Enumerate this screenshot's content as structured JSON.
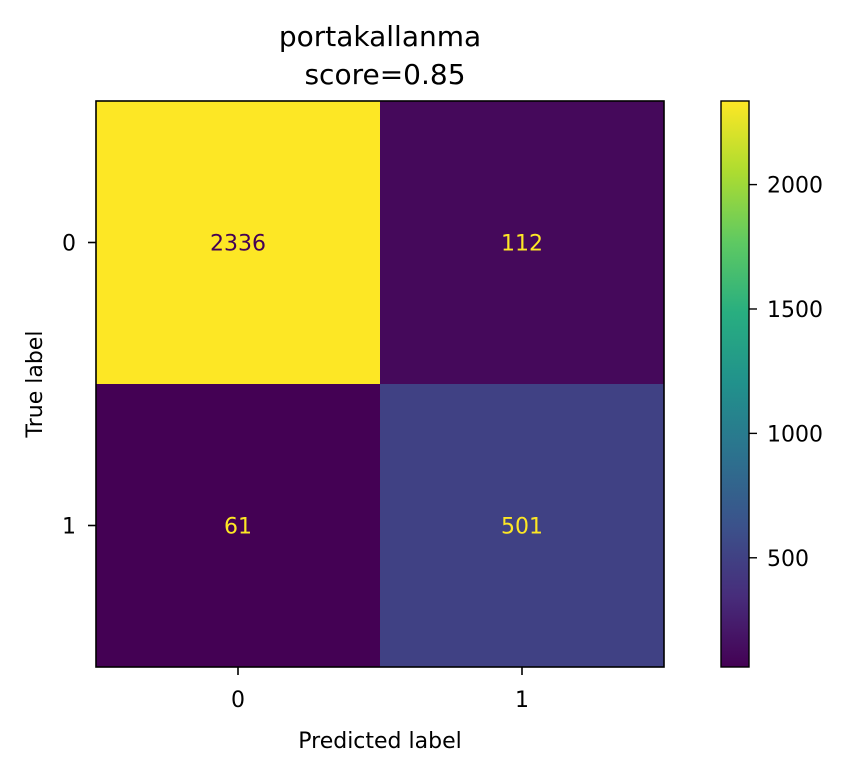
{
  "chart_data": {
    "type": "heatmap",
    "title_line1": "portakallanma",
    "title_line2": "score=0.85",
    "xlabel": "Predicted label",
    "ylabel": "True label",
    "x_categories": [
      "0",
      "1"
    ],
    "y_categories": [
      "0",
      "1"
    ],
    "matrix": [
      [
        2336,
        112
      ],
      [
        61,
        501
      ]
    ],
    "colormap": "viridis",
    "colorbar": {
      "range": [
        61,
        2336
      ],
      "ticks": [
        500,
        1000,
        1500,
        2000
      ],
      "tick_labels": [
        "500",
        "1000",
        "1500",
        "2000"
      ]
    },
    "grid": false,
    "label_colors": {
      "on_dark": "#fde725",
      "on_light": "#440154"
    }
  }
}
